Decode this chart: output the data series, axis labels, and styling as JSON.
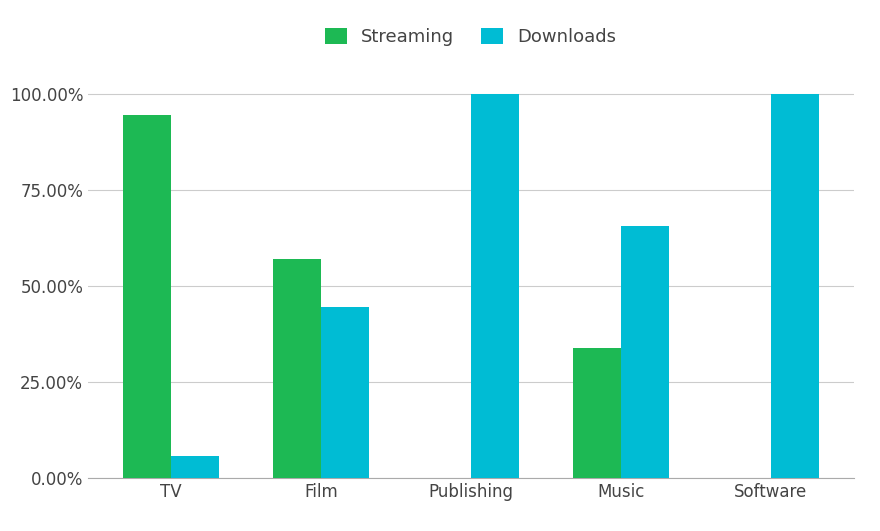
{
  "categories": [
    "TV",
    "Film",
    "Publishing",
    "Music",
    "Software"
  ],
  "streaming": [
    0.945,
    0.572,
    0.0,
    0.338,
    0.0
  ],
  "downloads": [
    0.058,
    0.445,
    1.0,
    0.658,
    1.0
  ],
  "streaming_color": "#1DB954",
  "downloads_color": "#00BCD4",
  "background_color": "#FFFFFF",
  "grid_color": "#CCCCCC",
  "legend_labels": [
    "Streaming",
    "Downloads"
  ],
  "bar_width": 0.32,
  "ylim": [
    0,
    1.08
  ],
  "yticks": [
    0.0,
    0.25,
    0.5,
    0.75,
    1.0
  ],
  "ytick_labels": [
    "0.00%",
    "25.00%",
    "50.00%",
    "75.00%",
    "100.00%"
  ],
  "tick_fontsize": 12,
  "label_fontsize": 12,
  "legend_fontsize": 13,
  "figsize": [
    8.8,
    5.31
  ],
  "dpi": 100
}
